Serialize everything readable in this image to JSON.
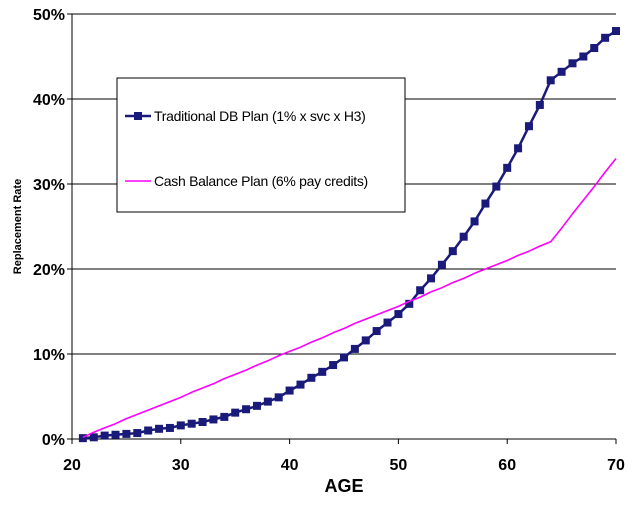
{
  "chart_data": {
    "type": "line",
    "xlabel": "AGE",
    "ylabel": "Replacement Rate",
    "xlim": [
      20,
      70
    ],
    "ylim": [
      0,
      50
    ],
    "x_ticks": [
      20,
      30,
      40,
      50,
      60,
      70
    ],
    "x_tick_labels": [
      "20",
      "30",
      "40",
      "50",
      "60",
      "70"
    ],
    "y_ticks": [
      0,
      10,
      20,
      30,
      40,
      50
    ],
    "y_tick_labels": [
      "0%",
      "10%",
      "20%",
      "30%",
      "40%",
      "50%"
    ],
    "grid": "horizontal",
    "legend_position": "upper-left, inside plot",
    "series": [
      {
        "name": "Traditional DB Plan (1% x svc x H3)",
        "color": "#1a1a7a",
        "marker": "square",
        "x": [
          21,
          22,
          23,
          24,
          25,
          26,
          27,
          28,
          29,
          30,
          31,
          32,
          33,
          34,
          35,
          36,
          37,
          38,
          39,
          40,
          41,
          42,
          43,
          44,
          45,
          46,
          47,
          48,
          49,
          50,
          51,
          52,
          53,
          54,
          55,
          56,
          57,
          58,
          59,
          60,
          61,
          62,
          63,
          64,
          65,
          66,
          67,
          68,
          69,
          70
        ],
        "values": [
          0.1,
          0.2,
          0.4,
          0.5,
          0.6,
          0.7,
          1.0,
          1.2,
          1.3,
          1.6,
          1.8,
          2.0,
          2.3,
          2.6,
          3.1,
          3.5,
          3.9,
          4.4,
          4.9,
          5.7,
          6.4,
          7.2,
          7.9,
          8.7,
          9.6,
          10.6,
          11.6,
          12.7,
          13.7,
          14.7,
          15.9,
          17.5,
          18.9,
          20.5,
          22.1,
          23.8,
          25.6,
          27.7,
          29.7,
          31.9,
          34.2,
          36.8,
          39.3,
          42.2,
          43.2,
          44.2,
          45.0,
          46.0,
          47.2,
          48.0
        ]
      },
      {
        "name": "Cash Balance Plan (6% pay credits)",
        "color": "#ff00ff",
        "marker": "none",
        "x": [
          21,
          22,
          23,
          24,
          25,
          26,
          27,
          28,
          29,
          30,
          31,
          32,
          33,
          34,
          35,
          36,
          37,
          38,
          39,
          40,
          41,
          42,
          43,
          44,
          45,
          46,
          47,
          48,
          49,
          50,
          51,
          52,
          53,
          54,
          55,
          56,
          57,
          58,
          59,
          60,
          61,
          62,
          63,
          64,
          65,
          66,
          67,
          68,
          69,
          70
        ],
        "values": [
          0.2,
          0.8,
          1.3,
          1.8,
          2.4,
          2.9,
          3.4,
          3.9,
          4.4,
          4.9,
          5.5,
          6.0,
          6.5,
          7.1,
          7.6,
          8.1,
          8.7,
          9.2,
          9.8,
          10.3,
          10.8,
          11.4,
          11.9,
          12.5,
          13.0,
          13.6,
          14.1,
          14.6,
          15.1,
          15.6,
          16.2,
          16.7,
          17.3,
          17.8,
          18.4,
          18.9,
          19.5,
          20.0,
          20.5,
          21.0,
          21.6,
          22.1,
          22.7,
          23.2,
          24.8,
          26.5,
          28.1,
          29.7,
          31.4,
          33.0
        ]
      }
    ]
  }
}
